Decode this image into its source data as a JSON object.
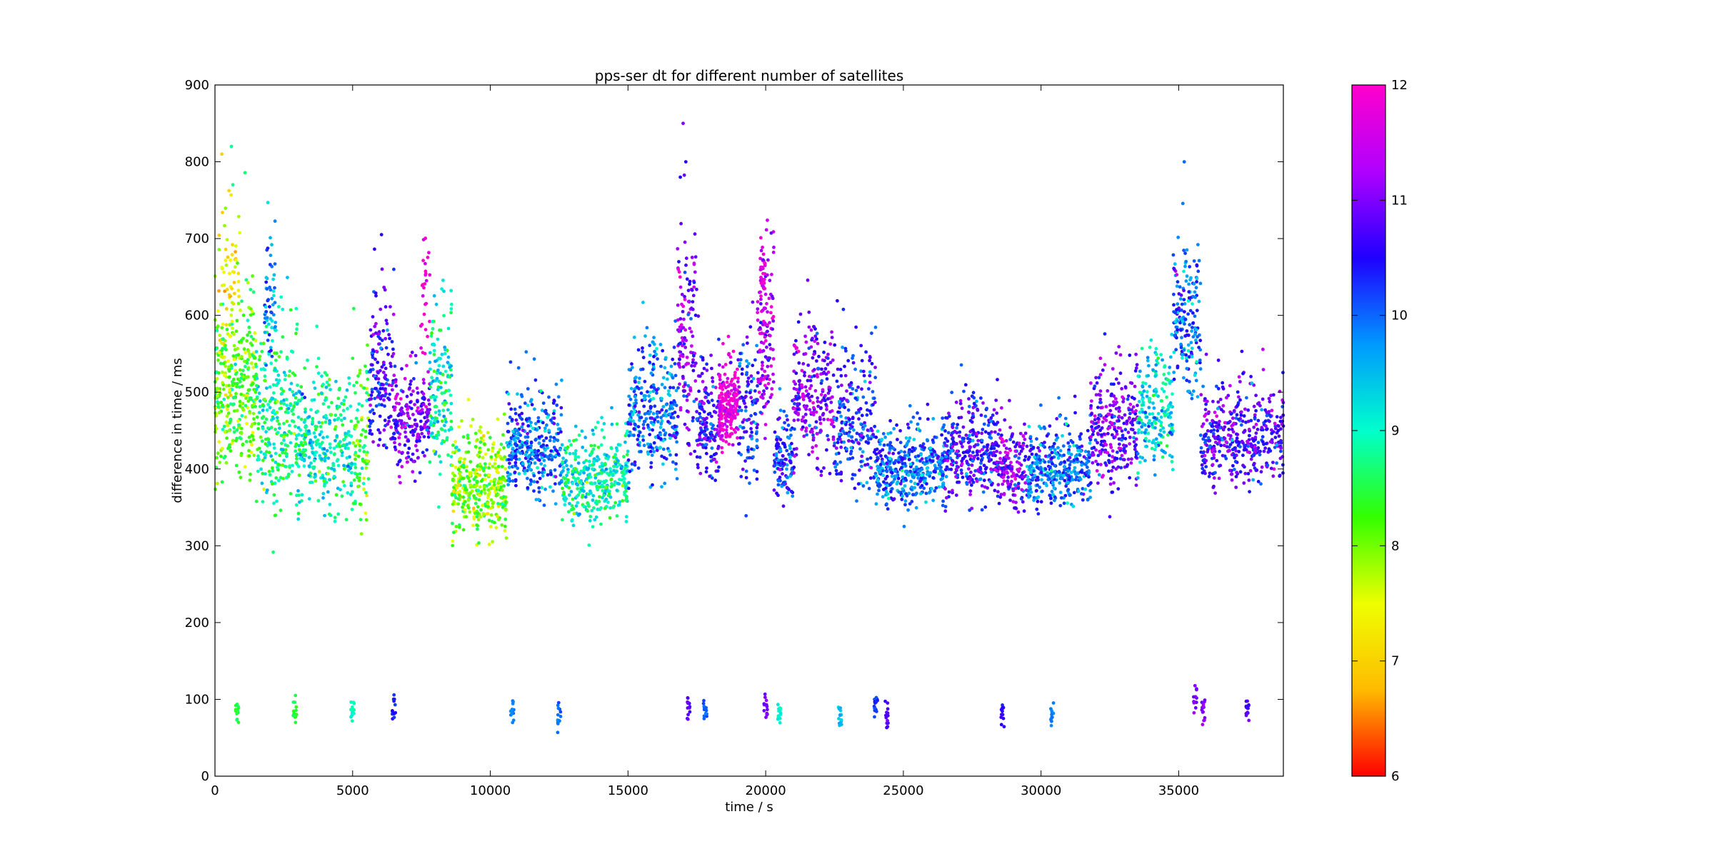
{
  "chart_data": {
    "type": "scatter",
    "title": "pps-ser dt for different number of satellites",
    "xlabel": "time / s",
    "ylabel": "difference in time / ms",
    "xlim": [
      0,
      38800
    ],
    "ylim": [
      0,
      900
    ],
    "x_ticks": [
      0,
      5000,
      10000,
      15000,
      20000,
      25000,
      30000,
      35000
    ],
    "y_ticks": [
      0,
      100,
      200,
      300,
      400,
      500,
      600,
      700,
      800,
      900
    ],
    "grid": false,
    "colorbar": {
      "label": "",
      "min": 6,
      "max": 12,
      "ticks": [
        6,
        7,
        8,
        9,
        10,
        11,
        12
      ],
      "colormap": "hsv-like",
      "colors": [
        "#ff0000",
        "#ffbb00",
        "#eeff00",
        "#33ff00",
        "#00ffcc",
        "#0099ff",
        "#1f00ff",
        "#b000ff",
        "#ff00cc"
      ]
    },
    "color_variable": "number of satellites",
    "segments": [
      {
        "x0": 0,
        "x1": 1500,
        "center": 500,
        "spread": 90,
        "sats": 8.2,
        "n": 340
      },
      {
        "x0": 100,
        "x1": 900,
        "center": 640,
        "spread": 80,
        "sats": 7.3,
        "n": 60
      },
      {
        "x0": 1500,
        "x1": 3000,
        "center": 460,
        "spread": 90,
        "sats": 8.8,
        "n": 260
      },
      {
        "x0": 1800,
        "x1": 2200,
        "center": 600,
        "spread": 70,
        "sats": 9.8,
        "n": 60
      },
      {
        "x0": 3000,
        "x1": 5000,
        "center": 430,
        "spread": 70,
        "sats": 9.0,
        "n": 300
      },
      {
        "x0": 5000,
        "x1": 5600,
        "center": 430,
        "spread": 90,
        "sats": 8.3,
        "n": 90
      },
      {
        "x0": 5600,
        "x1": 6500,
        "center": 520,
        "spread": 90,
        "sats": 10.6,
        "n": 160
      },
      {
        "x0": 6500,
        "x1": 7800,
        "center": 460,
        "spread": 60,
        "sats": 11.0,
        "n": 200
      },
      {
        "x0": 7500,
        "x1": 7800,
        "center": 620,
        "spread": 60,
        "sats": 11.8,
        "n": 25
      },
      {
        "x0": 7800,
        "x1": 8600,
        "center": 500,
        "spread": 80,
        "sats": 9.0,
        "n": 140
      },
      {
        "x0": 8600,
        "x1": 10600,
        "center": 375,
        "spread": 55,
        "sats": 8.0,
        "n": 360
      },
      {
        "x0": 10600,
        "x1": 12600,
        "center": 430,
        "spread": 55,
        "sats": 10.0,
        "n": 340
      },
      {
        "x0": 12600,
        "x1": 15000,
        "center": 385,
        "spread": 45,
        "sats": 9.0,
        "n": 360
      },
      {
        "x0": 15000,
        "x1": 16800,
        "center": 470,
        "spread": 70,
        "sats": 10.0,
        "n": 300
      },
      {
        "x0": 16800,
        "x1": 17500,
        "center": 560,
        "spread": 100,
        "sats": 11.0,
        "n": 140
      },
      {
        "x0": 17500,
        "x1": 18300,
        "center": 460,
        "spread": 70,
        "sats": 10.6,
        "n": 150
      },
      {
        "x0": 18300,
        "x1": 19000,
        "center": 480,
        "spread": 45,
        "sats": 11.9,
        "n": 220
      },
      {
        "x0": 19000,
        "x1": 19700,
        "center": 470,
        "spread": 70,
        "sats": 10.3,
        "n": 110
      },
      {
        "x0": 19700,
        "x1": 20300,
        "center": 560,
        "spread": 90,
        "sats": 11.3,
        "n": 120
      },
      {
        "x0": 19800,
        "x1": 20000,
        "center": 660,
        "spread": 40,
        "sats": 11.9,
        "n": 30
      },
      {
        "x0": 20300,
        "x1": 21000,
        "center": 410,
        "spread": 45,
        "sats": 10.3,
        "n": 120
      },
      {
        "x0": 21000,
        "x1": 22500,
        "center": 490,
        "spread": 70,
        "sats": 11.0,
        "n": 240
      },
      {
        "x0": 22500,
        "x1": 24000,
        "center": 460,
        "spread": 80,
        "sats": 10.3,
        "n": 220
      },
      {
        "x0": 24000,
        "x1": 26500,
        "center": 400,
        "spread": 40,
        "sats": 10.0,
        "n": 400
      },
      {
        "x0": 26500,
        "x1": 28500,
        "center": 420,
        "spread": 55,
        "sats": 10.6,
        "n": 330
      },
      {
        "x0": 28500,
        "x1": 29500,
        "center": 400,
        "spread": 40,
        "sats": 11.0,
        "n": 160
      },
      {
        "x0": 29500,
        "x1": 31800,
        "center": 400,
        "spread": 45,
        "sats": 10.0,
        "n": 360
      },
      {
        "x0": 31800,
        "x1": 33500,
        "center": 450,
        "spread": 60,
        "sats": 10.9,
        "n": 270
      },
      {
        "x0": 33500,
        "x1": 34800,
        "center": 470,
        "spread": 60,
        "sats": 9.3,
        "n": 200
      },
      {
        "x0": 34800,
        "x1": 35800,
        "center": 590,
        "spread": 70,
        "sats": 10.0,
        "n": 180
      },
      {
        "x0": 35800,
        "x1": 38800,
        "center": 440,
        "spread": 55,
        "sats": 10.7,
        "n": 420
      }
    ],
    "low_clusters": [
      {
        "x": 800,
        "y": 85,
        "sats": 8.5
      },
      {
        "x": 2900,
        "y": 80,
        "sats": 8.5
      },
      {
        "x": 5000,
        "y": 88,
        "sats": 9.0
      },
      {
        "x": 6500,
        "y": 88,
        "sats": 10.4
      },
      {
        "x": 10800,
        "y": 85,
        "sats": 10.0
      },
      {
        "x": 12500,
        "y": 75,
        "sats": 10.0
      },
      {
        "x": 17200,
        "y": 90,
        "sats": 10.8
      },
      {
        "x": 17800,
        "y": 85,
        "sats": 10.0
      },
      {
        "x": 20000,
        "y": 90,
        "sats": 11.0
      },
      {
        "x": 20500,
        "y": 80,
        "sats": 9.0
      },
      {
        "x": 22700,
        "y": 80,
        "sats": 9.5
      },
      {
        "x": 24000,
        "y": 90,
        "sats": 10.3
      },
      {
        "x": 24400,
        "y": 80,
        "sats": 10.8
      },
      {
        "x": 28600,
        "y": 80,
        "sats": 10.5
      },
      {
        "x": 30400,
        "y": 80,
        "sats": 9.8
      },
      {
        "x": 35600,
        "y": 100,
        "sats": 11.0
      },
      {
        "x": 35900,
        "y": 85,
        "sats": 11.0
      },
      {
        "x": 37500,
        "y": 88,
        "sats": 10.8
      }
    ],
    "outliers": [
      {
        "x": 17000,
        "y": 850,
        "sats": 11.0
      },
      {
        "x": 17100,
        "y": 800,
        "sats": 10.5
      },
      {
        "x": 16900,
        "y": 780,
        "sats": 10.5
      },
      {
        "x": 35200,
        "y": 800,
        "sats": 10.0
      },
      {
        "x": 600,
        "y": 820,
        "sats": 8.8
      },
      {
        "x": 250,
        "y": 810,
        "sats": 7.0
      },
      {
        "x": 650,
        "y": 770,
        "sats": 8.8
      }
    ]
  }
}
